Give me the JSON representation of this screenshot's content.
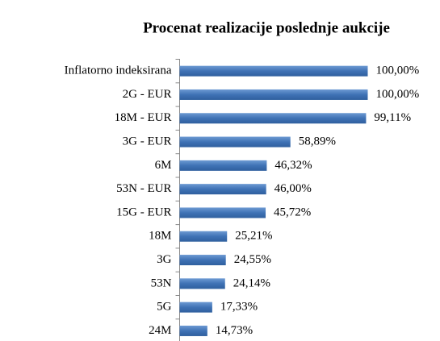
{
  "chart_data": {
    "type": "bar",
    "orientation": "horizontal",
    "title": "Procenat realizacije poslednje aukcije",
    "categories": [
      "Inflatorno indeksirana",
      "2G - EUR",
      "18M - EUR",
      "3G - EUR",
      "6M",
      "53N - EUR",
      "15G - EUR",
      "18M",
      "3G",
      "53N",
      "5G",
      "24M"
    ],
    "values": [
      100,
      100,
      99.11,
      58.89,
      46.32,
      46.0,
      45.72,
      25.21,
      24.55,
      24.14,
      17.33,
      14.73
    ],
    "value_labels": [
      "100,00%",
      "100,00%",
      "99,11%",
      "58,89%",
      "46,32%",
      "46,00%",
      "45,72%",
      "25,21%",
      "24,55%",
      "24,14%",
      "17,33%",
      "14,73%"
    ],
    "color": "#4a7ebb"
  }
}
